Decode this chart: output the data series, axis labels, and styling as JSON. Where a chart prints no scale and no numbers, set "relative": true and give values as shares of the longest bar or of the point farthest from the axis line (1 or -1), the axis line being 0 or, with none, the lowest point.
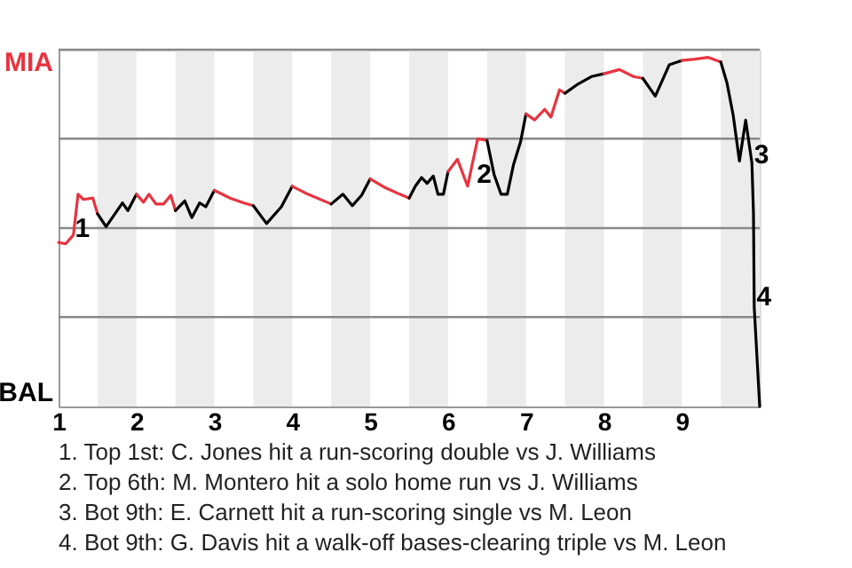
{
  "chart_data": {
    "type": "line",
    "relative": true,
    "xlim": [
      1,
      10
    ],
    "xticks": [
      1,
      2,
      3,
      4,
      5,
      6,
      7,
      8,
      9
    ],
    "legend": false,
    "marker": "none",
    "line_style": "solid",
    "series": [
      {
        "color": "#e8333f",
        "x": [
          1.0,
          1.09,
          1.19,
          1.25,
          1.32,
          1.44,
          1.5
        ],
        "values": [
          0.47,
          0.466,
          0.491,
          0.608,
          0.593,
          0.597,
          0.552
        ]
      },
      {
        "color": "#000000",
        "x": [
          1.5,
          1.61,
          1.82,
          1.89,
          2.0
        ],
        "values": [
          0.552,
          0.515,
          0.583,
          0.561,
          0.608
        ]
      },
      {
        "color": "#e8333f",
        "x": [
          2.0,
          2.09,
          2.16,
          2.25,
          2.35,
          2.44,
          2.5
        ],
        "values": [
          0.608,
          0.585,
          0.608,
          0.58,
          0.58,
          0.605,
          0.561
        ]
      },
      {
        "color": "#000000",
        "x": [
          2.5,
          2.62,
          2.71,
          2.81,
          2.89,
          3.0
        ],
        "values": [
          0.561,
          0.589,
          0.541,
          0.583,
          0.572,
          0.619
        ]
      },
      {
        "color": "#e8333f",
        "x": [
          3.0,
          3.2,
          3.38,
          3.5
        ],
        "values": [
          0.619,
          0.597,
          0.583,
          0.575
        ]
      },
      {
        "color": "#000000",
        "x": [
          3.5,
          3.67,
          3.86,
          4.0
        ],
        "values": [
          0.575,
          0.524,
          0.572,
          0.631
        ]
      },
      {
        "color": "#e8333f",
        "x": [
          4.0,
          4.2,
          4.5
        ],
        "values": [
          0.631,
          0.608,
          0.58
        ]
      },
      {
        "color": "#000000",
        "x": [
          4.5,
          4.65,
          4.77,
          4.89,
          5.0
        ],
        "values": [
          0.58,
          0.608,
          0.575,
          0.605,
          0.652
        ]
      },
      {
        "color": "#e8333f",
        "x": [
          5.0,
          5.2,
          5.38,
          5.5
        ],
        "values": [
          0.652,
          0.626,
          0.608,
          0.597
        ]
      },
      {
        "color": "#000000",
        "x": [
          5.5,
          5.58,
          5.66,
          5.73,
          5.81,
          5.87,
          5.94,
          6.0
        ],
        "values": [
          0.597,
          0.631,
          0.656,
          0.639,
          0.66,
          0.608,
          0.608,
          0.673
        ]
      },
      {
        "color": "#e8333f",
        "x": [
          6.0,
          6.12,
          6.25,
          6.38,
          6.5
        ],
        "values": [
          0.673,
          0.708,
          0.631,
          0.767,
          0.762
        ]
      },
      {
        "color": "#000000",
        "x": [
          6.5,
          6.59,
          6.68,
          6.76,
          6.84,
          6.93,
          7.0
        ],
        "values": [
          0.762,
          0.665,
          0.608,
          0.608,
          0.693,
          0.758,
          0.838
        ]
      },
      {
        "color": "#e8333f",
        "x": [
          7.0,
          7.11,
          7.24,
          7.32,
          7.43,
          7.5
        ],
        "values": [
          0.838,
          0.821,
          0.851,
          0.829,
          0.907,
          0.897
        ]
      },
      {
        "color": "#000000",
        "x": [
          7.5,
          7.67,
          7.84,
          8.0
        ],
        "values": [
          0.897,
          0.924,
          0.945,
          0.953
        ]
      },
      {
        "color": "#e8333f",
        "x": [
          8.0,
          8.2,
          8.38,
          8.5
        ],
        "values": [
          0.953,
          0.965,
          0.945,
          0.94
        ]
      },
      {
        "color": "#000000",
        "x": [
          8.5,
          8.66,
          8.84,
          9.0
        ],
        "values": [
          0.94,
          0.889,
          0.979,
          0.991
        ]
      },
      {
        "color": "#e8333f",
        "x": [
          9.0,
          9.17,
          9.34,
          9.5
        ],
        "values": [
          0.991,
          0.995,
          1,
          0.987
        ]
      },
      {
        "color": "#000000",
        "x": [
          9.5,
          9.58,
          9.66,
          9.74,
          9.82,
          9.9,
          9.92,
          9.93,
          10.0
        ],
        "values": [
          0.987,
          0.927,
          0.834,
          0.703,
          0.82,
          0.698,
          0.554,
          0.283,
          0
        ]
      }
    ],
    "bands": [
      {
        "axis": "x",
        "from": 1.5,
        "to": 2,
        "color": "#ececec"
      },
      {
        "axis": "x",
        "from": 2.5,
        "to": 3,
        "color": "#ececec"
      },
      {
        "axis": "x",
        "from": 3.5,
        "to": 4,
        "color": "#ececec"
      },
      {
        "axis": "x",
        "from": 4.5,
        "to": 5,
        "color": "#ececec"
      },
      {
        "axis": "x",
        "from": 5.5,
        "to": 6,
        "color": "#ececec"
      },
      {
        "axis": "x",
        "from": 6.5,
        "to": 7,
        "color": "#ececec"
      },
      {
        "axis": "x",
        "from": 7.5,
        "to": 8,
        "color": "#ececec"
      },
      {
        "axis": "x",
        "from": 8.5,
        "to": 9,
        "color": "#ececec"
      },
      {
        "axis": "x",
        "from": 9.5,
        "to": 10,
        "color": "#ececec"
      }
    ],
    "ref_lines": [
      {
        "axis": "y",
        "value": 0.256,
        "color": "#888888"
      },
      {
        "axis": "y",
        "value": 0.511,
        "color": "#888888"
      },
      {
        "axis": "y",
        "value": 0.767,
        "color": "#888888"
      },
      {
        "axis": "y",
        "value": 1.022,
        "color": "#888888"
      }
    ],
    "annotations": [
      "MIA",
      "BAL",
      {
        "text": "1",
        "x": 1.21,
        "y": 0.511
      },
      {
        "text": "2",
        "x": 6.37,
        "y": 0.667
      },
      {
        "text": "3",
        "x": 9.93,
        "y": 0.722
      },
      {
        "text": "4",
        "x": 9.96,
        "y": 0.315
      },
      "1. Top 1st: C. Jones hit a run-scoring double vs J. Williams",
      "2. Top 6th: M. Montero hit a solo home run vs J. Williams",
      "3. Bot 9th: E. Carnett hit a run-scoring single vs M. Leon",
      "4. Bot 9th: G. Davis hit a walk-off bases-clearing triple vs M. Leon"
    ]
  }
}
